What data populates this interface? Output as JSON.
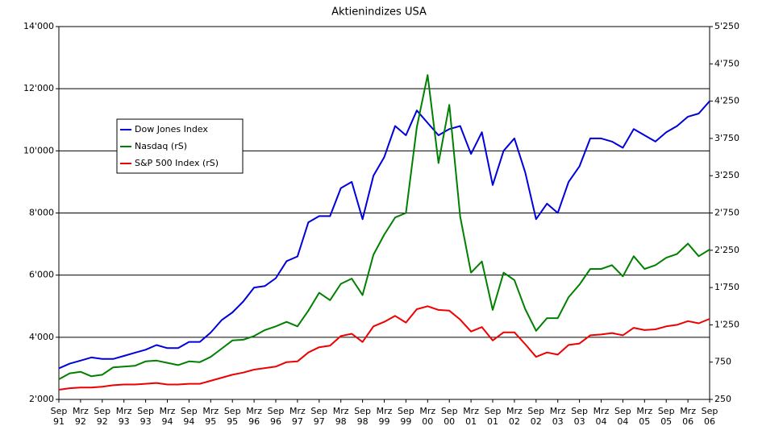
{
  "chart_data": {
    "type": "line",
    "title": "Aktienindizes USA",
    "categories": [
      "Sep 91",
      null,
      "Mrz 92",
      null,
      "Sep 92",
      null,
      "Mrz 93",
      null,
      "Sep 93",
      null,
      "Mrz 94",
      null,
      "Sep 94",
      null,
      "Mrz 95",
      null,
      "Sep 95",
      null,
      "Mrz 96",
      null,
      "Sep 96",
      null,
      "Mrz 97",
      null,
      "Sep 97",
      null,
      "Mrz 98",
      null,
      "Sep 98",
      null,
      "Mrz 99",
      null,
      "Sep 99",
      null,
      "Mrz 00",
      null,
      "Sep 00",
      null,
      "Mrz 01",
      null,
      "Sep 01",
      null,
      "Mrz 02",
      null,
      "Sep 02",
      null,
      "Mrz 03",
      null,
      "Sep 03",
      null,
      "Mrz 04",
      null,
      "Sep 04",
      null,
      "Mrz 05",
      null,
      "Sep 05",
      null,
      "Mrz 06",
      null,
      "Sep 06"
    ],
    "series": [
      {
        "name": "Dow Jones Index",
        "color": "#0000dd",
        "axis": "y",
        "values": [
          3000,
          3150,
          3250,
          3350,
          3300,
          3300,
          3400,
          3500,
          3600,
          3750,
          3650,
          3650,
          3850,
          3850,
          4150,
          4550,
          4800,
          5150,
          5600,
          5650,
          5900,
          6450,
          6600,
          7700,
          7900,
          7900,
          8800,
          9000,
          7800,
          9200,
          9800,
          10800,
          10500,
          11300,
          10900,
          10500,
          10700,
          10800,
          9900,
          10600,
          8900,
          10000,
          10400,
          9300,
          7800,
          8300,
          8000,
          9000,
          9500,
          10400,
          10400,
          10300,
          10100,
          10700,
          10500,
          10300,
          10600,
          10800,
          11100,
          11200,
          11600
        ]
      },
      {
        "name": "Nasdaq (rS)",
        "color": "#008000",
        "axis": "y2",
        "values": [
          520,
          600,
          620,
          560,
          580,
          680,
          690,
          700,
          760,
          770,
          740,
          710,
          760,
          750,
          820,
          930,
          1040,
          1050,
          1100,
          1180,
          1230,
          1290,
          1230,
          1440,
          1680,
          1580,
          1800,
          1870,
          1650,
          2190,
          2460,
          2690,
          2750,
          3900,
          4600,
          3420,
          4200,
          2700,
          1950,
          2100,
          1450,
          1950,
          1850,
          1460,
          1170,
          1340,
          1340,
          1620,
          1790,
          2000,
          2000,
          2050,
          1900,
          2170,
          2000,
          2050,
          2150,
          2200,
          2340,
          2170,
          2260
        ]
      },
      {
        "name": "S&P 500 Index (rS)",
        "color": "#ee0000",
        "axis": "y2",
        "values": [
          380,
          400,
          410,
          410,
          420,
          440,
          450,
          450,
          460,
          470,
          450,
          450,
          460,
          460,
          500,
          540,
          580,
          610,
          650,
          670,
          690,
          750,
          760,
          880,
          950,
          970,
          1100,
          1130,
          1020,
          1230,
          1290,
          1370,
          1280,
          1460,
          1500,
          1450,
          1440,
          1320,
          1160,
          1220,
          1040,
          1150,
          1150,
          990,
          820,
          880,
          850,
          980,
          1000,
          1110,
          1120,
          1140,
          1110,
          1210,
          1180,
          1190,
          1230,
          1250,
          1300,
          1270,
          1330
        ]
      }
    ],
    "ylim": [
      2000,
      14000
    ],
    "yticks": [
      {
        "value": 2000,
        "label": "2'000"
      },
      {
        "value": 4000,
        "label": "4'000"
      },
      {
        "value": 6000,
        "label": "6'000"
      },
      {
        "value": 8000,
        "label": "8'000"
      },
      {
        "value": 10000,
        "label": "10'000"
      },
      {
        "value": 12000,
        "label": "12'000"
      },
      {
        "value": 14000,
        "label": "14'000"
      }
    ],
    "y2lim": [
      250,
      5250
    ],
    "y2ticks": [
      250,
      750,
      {
        "value": 1250,
        "label": "1'250"
      },
      {
        "value": 1750,
        "label": "1'750"
      },
      {
        "value": 2250,
        "label": "2'250"
      },
      {
        "value": 2750,
        "label": "2'750"
      },
      {
        "value": 3250,
        "label": "3'250"
      },
      {
        "value": 3750,
        "label": "3'750"
      },
      {
        "value": 4250,
        "label": "4'250"
      },
      {
        "value": 4750,
        "label": "4'750"
      },
      {
        "value": 5250,
        "label": "5'250"
      }
    ],
    "grid": true,
    "legend": "upper left"
  }
}
